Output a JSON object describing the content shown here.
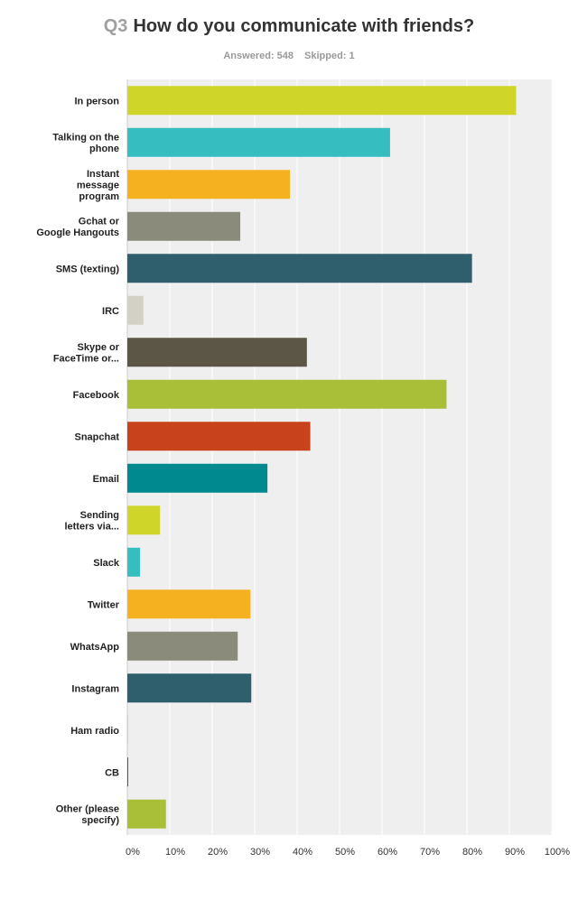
{
  "header": {
    "question_number": "Q3",
    "question_text": "How do you communicate with friends?",
    "answered_label": "Answered: 548",
    "skipped_label": "Skipped: 1"
  },
  "chart_data": {
    "type": "bar",
    "orientation": "horizontal",
    "title": "How do you communicate with friends?",
    "xlim": [
      0,
      100
    ],
    "x_ticks": [
      "0%",
      "10%",
      "20%",
      "30%",
      "40%",
      "50%",
      "60%",
      "70%",
      "80%",
      "90%",
      "100%"
    ],
    "grid": true,
    "categories": [
      {
        "label": [
          "In person"
        ],
        "value": 91.6,
        "color": "#cfd629"
      },
      {
        "label": [
          "Talking on the",
          "phone"
        ],
        "value": 61.9,
        "color": "#35bdbf"
      },
      {
        "label": [
          "Instant",
          "message",
          "program"
        ],
        "value": 38.3,
        "color": "#f6b121"
      },
      {
        "label": [
          "Gchat or",
          "Google Hangouts"
        ],
        "value": 26.6,
        "color": "#8a8b7a"
      },
      {
        "label": [
          "SMS (texting)"
        ],
        "value": 81.2,
        "color": "#2f5f6d"
      },
      {
        "label": [
          "IRC"
        ],
        "value": 3.8,
        "color": "#d3d1c5"
      },
      {
        "label": [
          "Skype or",
          "FaceTime or..."
        ],
        "value": 42.3,
        "color": "#5b5646"
      },
      {
        "label": [
          "Facebook"
        ],
        "value": 75.2,
        "color": "#a9bf38"
      },
      {
        "label": [
          "Snapchat"
        ],
        "value": 43.1,
        "color": "#c8431b"
      },
      {
        "label": [
          "Email"
        ],
        "value": 33.0,
        "color": "#00898e"
      },
      {
        "label": [
          "Sending",
          "letters via..."
        ],
        "value": 7.7,
        "color": "#cfd629"
      },
      {
        "label": [
          "Slack"
        ],
        "value": 3.0,
        "color": "#35bdbf"
      },
      {
        "label": [
          "Twitter"
        ],
        "value": 29.0,
        "color": "#f6b121"
      },
      {
        "label": [
          "WhatsApp"
        ],
        "value": 26.0,
        "color": "#8a8b7a"
      },
      {
        "label": [
          "Instagram"
        ],
        "value": 29.2,
        "color": "#2f5f6d"
      },
      {
        "label": [
          "Ham radio"
        ],
        "value": 0.2,
        "color": "#d3d1c5"
      },
      {
        "label": [
          "CB"
        ],
        "value": 0.2,
        "color": "#5b5646"
      },
      {
        "label": [
          "Other (please",
          "specify)"
        ],
        "value": 9.1,
        "color": "#a9bf38"
      }
    ]
  }
}
